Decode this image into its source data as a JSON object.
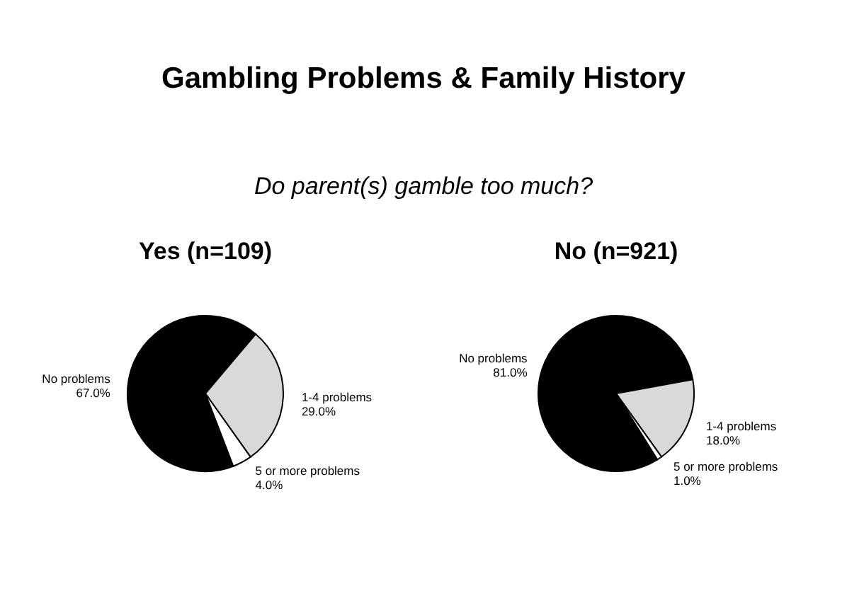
{
  "chart_data": [
    {
      "type": "pie",
      "title": "Yes (n=109)",
      "annotations": [
        "Gambling Problems & Family History",
        "Do parent(s) gamble too much?"
      ],
      "categories": [
        "No problems",
        "1-4 problems",
        "5 or more problems"
      ],
      "values": [
        67,
        29,
        4
      ],
      "value_labels": [
        "67.0%",
        "29.0%",
        "4.0%"
      ],
      "colors": [
        "#000000",
        "#d9d9d9",
        "#ffffff"
      ],
      "legend": false
    },
    {
      "type": "pie",
      "title": "No (n=921)",
      "categories": [
        "No problems",
        "1-4 problems",
        "5 or more problems"
      ],
      "values": [
        81,
        18,
        1
      ],
      "value_labels": [
        "81.0%",
        "18.0%",
        "1.0%"
      ],
      "colors": [
        "#000000",
        "#d9d9d9",
        "#ffffff"
      ],
      "legend": false
    }
  ]
}
